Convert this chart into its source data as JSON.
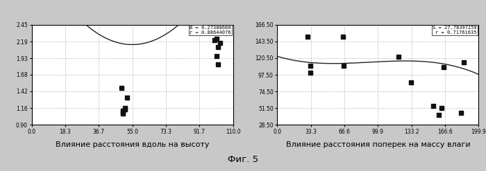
{
  "left": {
    "scatter_x": [
      49,
      50,
      50,
      50,
      51,
      51,
      52,
      100,
      101,
      101,
      102,
      102,
      103
    ],
    "scatter_y": [
      1.47,
      1.08,
      1.1,
      1.12,
      1.14,
      1.16,
      1.32,
      2.21,
      2.23,
      1.97,
      1.84,
      2.1,
      2.17
    ],
    "xlim": [
      0.0,
      110.0
    ],
    "ylim": [
      0.9,
      2.45
    ],
    "xticks": [
      0.0,
      18.3,
      36.7,
      55.0,
      73.3,
      91.7,
      110.0
    ],
    "yticks": [
      0.9,
      1.16,
      1.42,
      1.68,
      1.93,
      2.19,
      2.45
    ],
    "annotation": "B = 0.27388660\nr = 0.88644076",
    "xlabel": "Влияние расстояния вдоль на высоту",
    "poly_coeffs": [
      0.00048,
      -0.0528,
      3.595
    ]
  },
  "right": {
    "scatter_x": [
      30,
      33,
      33,
      65,
      66,
      120,
      133,
      155,
      160,
      163,
      165,
      182,
      185
    ],
    "scatter_y": [
      150,
      100,
      110,
      150,
      110,
      122,
      87,
      55,
      42,
      52,
      108,
      45,
      115
    ],
    "xlim": [
      0.0,
      199.9
    ],
    "ylim": [
      28.5,
      166.5
    ],
    "xticks": [
      0.0,
      33.3,
      66.6,
      99.9,
      133.2,
      166.6,
      199.9
    ],
    "yticks": [
      28.5,
      51.5,
      74.5,
      97.5,
      120.5,
      143.5,
      166.5
    ],
    "annotation": "S = 27.78397259\nr = 0.71761635",
    "xlabel": "Влияние расстояния поперек на массу влаги",
    "poly_coeffs": [
      -1.95e-05,
      0.00535,
      -0.415,
      123.0
    ]
  },
  "figure_label": "Фиг. 5",
  "bg_color": "#c8c8c8",
  "plot_bg_color": "#ffffff",
  "grid_color": "#aaaaaa",
  "scatter_color": "#111111",
  "curve_color": "#222222"
}
